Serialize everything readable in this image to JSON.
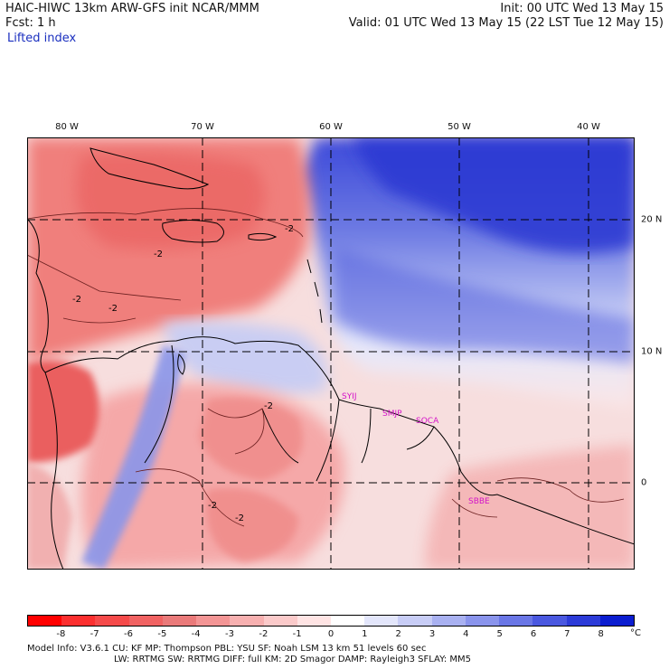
{
  "header": {
    "line1_left": "HAIC-HIWC 13km ARW-GFS init   NCAR/MMM",
    "line1_right": "Init: 00 UTC Wed 13 May 15",
    "line2_left": "Fcst:    1 h",
    "line2_right": "Valid: 01 UTC Wed 13 May 15 (22 LST Tue 12 May 15)",
    "field_name": "Lifted index"
  },
  "map": {
    "lon_labels": [
      "80 W",
      "70 W",
      "60 W",
      "50 W",
      "40 W"
    ],
    "lat_labels": [
      "20 N",
      "10 N",
      "0"
    ],
    "contour_labels": [
      "-2",
      "-2",
      "-2",
      "-2",
      "-2",
      "-2",
      "-2"
    ],
    "stations": [
      "SYIJ",
      "SMJP",
      "SOCA",
      "SBBE"
    ],
    "colors": {
      "ocean_north": "#2f3bd6",
      "ocean_mid": "#8f9ae6",
      "land_warm": "#f28e8a",
      "land_cool": "#b9c3f0",
      "neutral": "#f9e6e6",
      "grid": "#000000",
      "station": "#d414c8"
    }
  },
  "colorbar": {
    "ticks": [
      "-8",
      "-7",
      "-6",
      "-5",
      "-4",
      "-3",
      "-2",
      "-1",
      "0",
      "1",
      "2",
      "3",
      "4",
      "5",
      "6",
      "7",
      "8"
    ],
    "unit": "°C",
    "colors": [
      "#ff0000",
      "#fb2f2f",
      "#f54a4a",
      "#f06262",
      "#ea7a7a",
      "#f39595",
      "#f7b0b0",
      "#fbcaca",
      "#ffe4e4",
      "#ffffff",
      "#e3e6fb",
      "#c8cdf6",
      "#a9b1f1",
      "#8a94ec",
      "#6a76e6",
      "#4a58e0",
      "#2c3bd8",
      "#0b1dd0"
    ]
  },
  "footer": {
    "line1": "Model Info: V3.6.1    CU: KF      MP: Thompson     PBL: YSU       SF: Noah LSM     13 km    51 levels    60 sec",
    "line2": "LW: RRTMG    SW: RRTMG   DIFF: full    KM: 2D Smagor DAMP: Rayleigh3   SFLAY: MM5"
  }
}
